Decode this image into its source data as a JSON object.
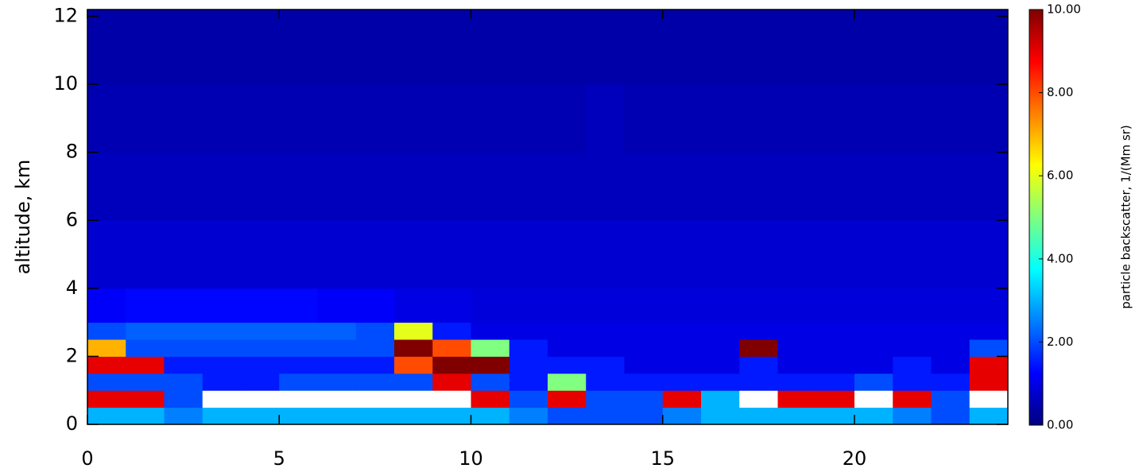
{
  "chart_data": {
    "type": "heatmap",
    "ylabel": "altitude, km",
    "colorbar_label": "particle backscatter, 1/(Mm sr)",
    "xlim": [
      0,
      24
    ],
    "xticks": [
      0,
      5,
      10,
      15,
      20
    ],
    "ylim": [
      0,
      12.2
    ],
    "yticks": [
      0,
      2,
      4,
      6,
      8,
      10,
      12
    ],
    "x_edges": [
      0,
      1,
      2,
      3,
      4,
      5,
      6,
      7,
      8,
      9,
      10,
      11,
      12,
      13,
      14,
      15,
      16,
      17,
      18,
      19,
      20,
      21,
      22,
      23,
      24
    ],
    "y_edges": [
      0,
      0.5,
      1,
      1.5,
      2,
      2.5,
      3,
      4,
      6,
      8,
      10,
      12.2
    ],
    "zlim": [
      0,
      10
    ],
    "zticks": [
      {
        "value": 0,
        "label": "0.00"
      },
      {
        "value": 2,
        "label": "2.00"
      },
      {
        "value": 4,
        "label": "4.00"
      },
      {
        "value": 6,
        "label": "6.00"
      },
      {
        "value": 8,
        "label": "8.00"
      },
      {
        "value": 10,
        "label": "10.00"
      }
    ],
    "z": [
      [
        3,
        3,
        2.5,
        3,
        3,
        3,
        3,
        3,
        3,
        3,
        3,
        2.5,
        2,
        2,
        2,
        2.5,
        3,
        3,
        3,
        3,
        3,
        2.5,
        2,
        3
      ],
      [
        9,
        9,
        2,
        11,
        11,
        11,
        11,
        11,
        11,
        11,
        9,
        2,
        9,
        2,
        2,
        9,
        3,
        11,
        9,
        9,
        11,
        9,
        2,
        11
      ],
      [
        2,
        2,
        2,
        1.5,
        1.5,
        2,
        2,
        2,
        2,
        9,
        2,
        1.5,
        5,
        1.5,
        1.5,
        1.5,
        1.5,
        1.5,
        1.5,
        1.5,
        2,
        1.5,
        1.5,
        9
      ],
      [
        9,
        9,
        1.5,
        1.5,
        1.5,
        1.5,
        1.5,
        1.5,
        8,
        10,
        10,
        1.5,
        1.5,
        1.5,
        1,
        1,
        1,
        1.5,
        1,
        1,
        1,
        1.5,
        1,
        9
      ],
      [
        7,
        2,
        2,
        2,
        2,
        2,
        2,
        2,
        10,
        8,
        5,
        1.5,
        1,
        1,
        1,
        1,
        1,
        10,
        1,
        1,
        1,
        1,
        1,
        2
      ],
      [
        2,
        2.2,
        2.2,
        2.2,
        2.2,
        2.2,
        2.2,
        2,
        6,
        1.5,
        1,
        1,
        1,
        1,
        1,
        1,
        1,
        1,
        1,
        1,
        1,
        1,
        1,
        1
      ],
      [
        1.2,
        1.3,
        1.3,
        1.3,
        1.3,
        1.3,
        1.2,
        1.2,
        1,
        1,
        0.9,
        0.9,
        0.9,
        0.9,
        0.9,
        0.9,
        0.9,
        0.9,
        0.9,
        0.9,
        0.9,
        0.9,
        0.9,
        0.9
      ],
      [
        0.8,
        0.8,
        0.8,
        0.8,
        0.8,
        0.8,
        0.8,
        0.8,
        0.8,
        0.8,
        0.8,
        0.8,
        0.8,
        0.8,
        0.8,
        0.8,
        0.8,
        0.8,
        0.8,
        0.8,
        0.8,
        0.8,
        0.8,
        0.8
      ],
      [
        0.6,
        0.6,
        0.6,
        0.6,
        0.6,
        0.6,
        0.6,
        0.6,
        0.6,
        0.6,
        0.6,
        0.6,
        0.6,
        0.6,
        0.6,
        0.6,
        0.6,
        0.6,
        0.6,
        0.6,
        0.6,
        0.6,
        0.6,
        0.6
      ],
      [
        0.5,
        0.5,
        0.5,
        0.5,
        0.5,
        0.5,
        0.5,
        0.5,
        0.5,
        0.5,
        0.5,
        0.5,
        0.5,
        0.6,
        0.5,
        0.5,
        0.5,
        0.5,
        0.5,
        0.5,
        0.5,
        0.5,
        0.5,
        0.5
      ],
      [
        0.4,
        0.4,
        0.4,
        0.4,
        0.4,
        0.4,
        0.4,
        0.4,
        0.4,
        0.4,
        0.4,
        0.4,
        0.4,
        0.4,
        0.4,
        0.4,
        0.4,
        0.4,
        0.4,
        0.4,
        0.4,
        0.4,
        0.4,
        0.4
      ]
    ]
  }
}
